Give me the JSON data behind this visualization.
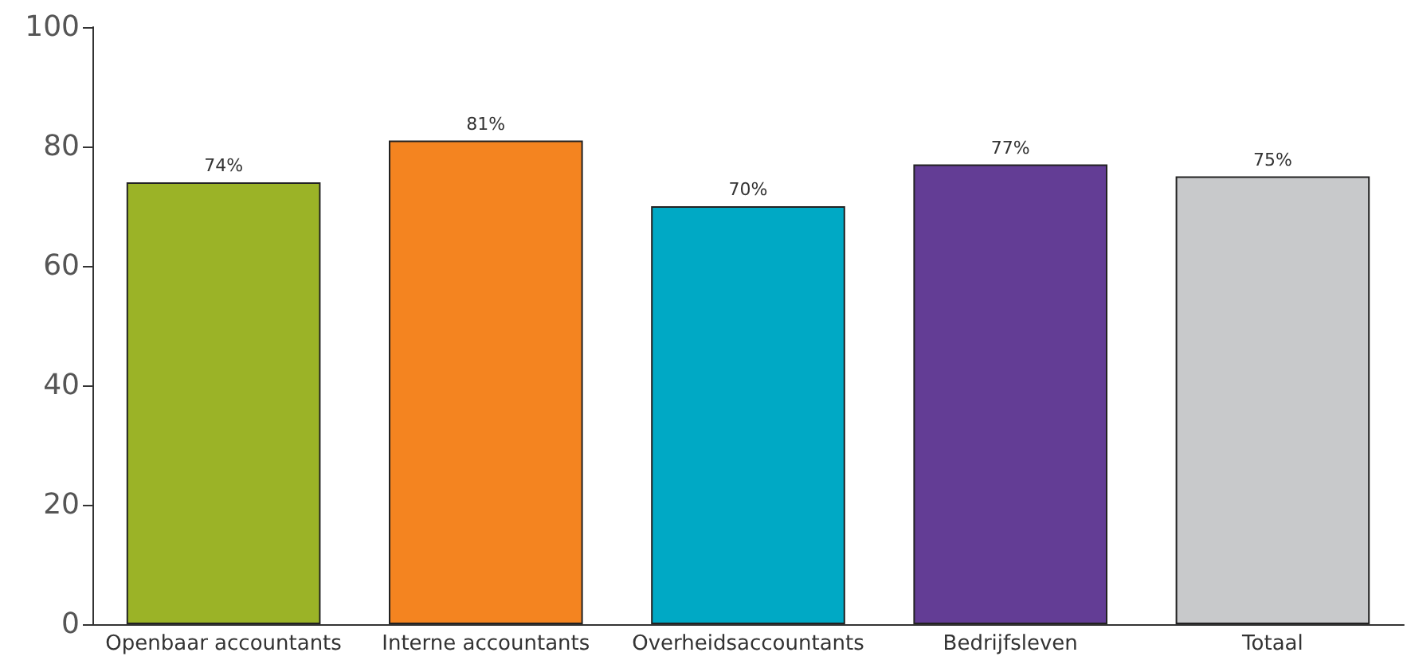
{
  "chart_data": {
    "type": "bar",
    "categories": [
      "Openbaar accountants",
      "Interne accountants",
      "Overheidsaccountants",
      "Bedrijfsleven",
      "Totaal"
    ],
    "values": [
      74,
      81,
      70,
      77,
      75
    ],
    "colors": [
      "#9bb327",
      "#f48420",
      "#00a9c5",
      "#633d95",
      "#c8c9cb"
    ],
    "value_labels": [
      "74%",
      "81%",
      "70%",
      "77%",
      "75%"
    ],
    "ylim": [
      0,
      100
    ],
    "yticks": [
      0,
      20,
      40,
      60,
      80,
      100
    ],
    "grid": false
  }
}
